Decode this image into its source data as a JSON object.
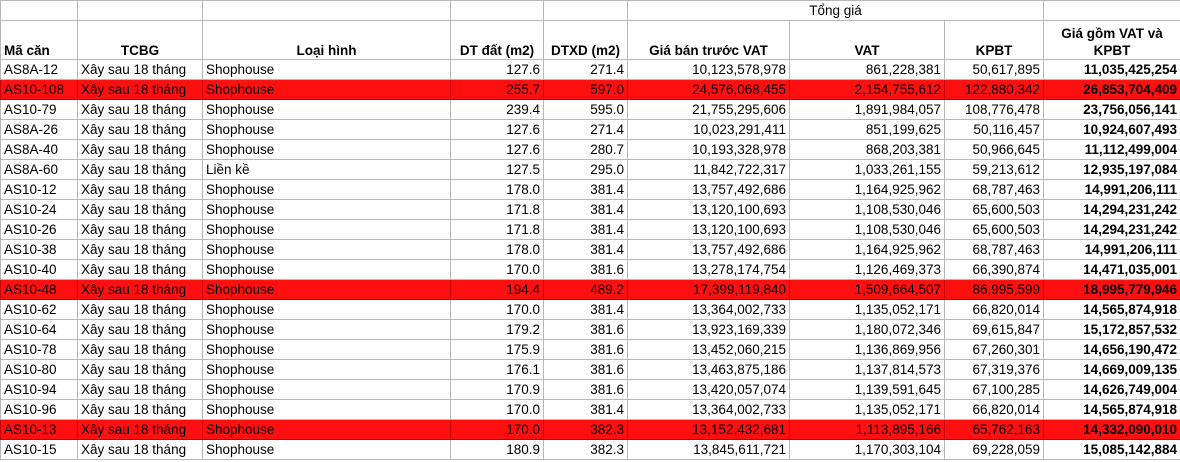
{
  "group_header": "Tổng giá",
  "columns": [
    "Mã căn",
    "TCBG",
    "Loại hình",
    "DT đất (m2)",
    "DTXD (m2)",
    "Giá bán trước VAT",
    "VAT",
    "KPBT",
    "Giá gồm VAT và KPBT"
  ],
  "highlight_color": "#ff1010",
  "rows": [
    {
      "cells": [
        "AS8A-12",
        "Xây sau 18 tháng",
        "Shophouse",
        "127.6",
        "271.4",
        "10,123,578,978",
        "861,228,381",
        "50,617,895",
        "11,035,425,254"
      ],
      "highlight": false
    },
    {
      "cells": [
        "AS10-108",
        "Xây sau 18 tháng",
        "Shophouse",
        "255.7",
        "597.0",
        "24,576,068,455",
        "2,154,755,612",
        "122,880,342",
        "26,853,704,409"
      ],
      "highlight": true
    },
    {
      "cells": [
        "AS10-79",
        "Xây sau 18 tháng",
        "Shophouse",
        "239.4",
        "595.0",
        "21,755,295,606",
        "1,891,984,057",
        "108,776,478",
        "23,756,056,141"
      ],
      "highlight": false
    },
    {
      "cells": [
        "AS8A-26",
        "Xây sau 18 tháng",
        "Shophouse",
        "127.6",
        "271.4",
        "10,023,291,411",
        "851,199,625",
        "50,116,457",
        "10,924,607,493"
      ],
      "highlight": false
    },
    {
      "cells": [
        "AS8A-40",
        "Xây sau 18 tháng",
        "Shophouse",
        "127.6",
        "280.7",
        "10,193,328,978",
        "868,203,381",
        "50,966,645",
        "11,112,499,004"
      ],
      "highlight": false
    },
    {
      "cells": [
        "AS8A-60",
        "Xây sau 18 tháng",
        "Liền kề",
        "127.5",
        "295.0",
        "11,842,722,317",
        "1,033,261,155",
        "59,213,612",
        "12,935,197,084"
      ],
      "highlight": false
    },
    {
      "cells": [
        "AS10-12",
        "Xây sau 18 tháng",
        "Shophouse",
        "178.0",
        "381.4",
        "13,757,492,686",
        "1,164,925,962",
        "68,787,463",
        "14,991,206,111"
      ],
      "highlight": false
    },
    {
      "cells": [
        "AS10-24",
        "Xây sau 18 tháng",
        "Shophouse",
        "171.8",
        "381.4",
        "13,120,100,693",
        "1,108,530,046",
        "65,600,503",
        "14,294,231,242"
      ],
      "highlight": false
    },
    {
      "cells": [
        "AS10-26",
        "Xây sau 18 tháng",
        "Shophouse",
        "171.8",
        "381.4",
        "13,120,100,693",
        "1,108,530,046",
        "65,600,503",
        "14,294,231,242"
      ],
      "highlight": false
    },
    {
      "cells": [
        "AS10-38",
        "Xây sau 18 tháng",
        "Shophouse",
        "178.0",
        "381.4",
        "13,757,492,686",
        "1,164,925,962",
        "68,787,463",
        "14,991,206,111"
      ],
      "highlight": false
    },
    {
      "cells": [
        "AS10-40",
        "Xây sau 18 tháng",
        "Shophouse",
        "170.0",
        "381.6",
        "13,278,174,754",
        "1,126,469,373",
        "66,390,874",
        "14,471,035,001"
      ],
      "highlight": false
    },
    {
      "cells": [
        "AS10-48",
        "Xây sau 18 tháng",
        "Shophouse",
        "194.4",
        "489.2",
        "17,399,119,840",
        "1,509,664,507",
        "86,995,599",
        "18,995,779,946"
      ],
      "highlight": true
    },
    {
      "cells": [
        "AS10-62",
        "Xây sau 18 tháng",
        "Shophouse",
        "170.0",
        "381.4",
        "13,364,002,733",
        "1,135,052,171",
        "66,820,014",
        "14,565,874,918"
      ],
      "highlight": false
    },
    {
      "cells": [
        "AS10-64",
        "Xây sau 18 tháng",
        "Shophouse",
        "179.2",
        "381.6",
        "13,923,169,339",
        "1,180,072,346",
        "69,615,847",
        "15,172,857,532"
      ],
      "highlight": false
    },
    {
      "cells": [
        "AS10-78",
        "Xây sau 18 tháng",
        "Shophouse",
        "175.9",
        "381.6",
        "13,452,060,215",
        "1,136,869,956",
        "67,260,301",
        "14,656,190,472"
      ],
      "highlight": false
    },
    {
      "cells": [
        "AS10-80",
        "Xây sau 18 tháng",
        "Shophouse",
        "176.1",
        "381.6",
        "13,463,875,186",
        "1,137,814,573",
        "67,319,376",
        "14,669,009,135"
      ],
      "highlight": false
    },
    {
      "cells": [
        "AS10-94",
        "Xây sau 18 tháng",
        "Shophouse",
        "170.9",
        "381.6",
        "13,420,057,074",
        "1,139,591,645",
        "67,100,285",
        "14,626,749,004"
      ],
      "highlight": false
    },
    {
      "cells": [
        "AS10-96",
        "Xây sau 18 tháng",
        "Shophouse",
        "170.0",
        "381.4",
        "13,364,002,733",
        "1,135,052,171",
        "66,820,014",
        "14,565,874,918"
      ],
      "highlight": false
    },
    {
      "cells": [
        "AS10-13",
        "Xây sau 18 tháng",
        "Shophouse",
        "170.0",
        "382.3",
        "13,152,432,681",
        "1,113,895,166",
        "65,762,163",
        "14,332,090,010"
      ],
      "highlight": true
    },
    {
      "cells": [
        "AS10-15",
        "Xây sau 18 tháng",
        "Shophouse",
        "180.9",
        "382.3",
        "13,845,611,721",
        "1,170,303,104",
        "69,228,059",
        "15,085,142,884"
      ],
      "highlight": false
    }
  ]
}
